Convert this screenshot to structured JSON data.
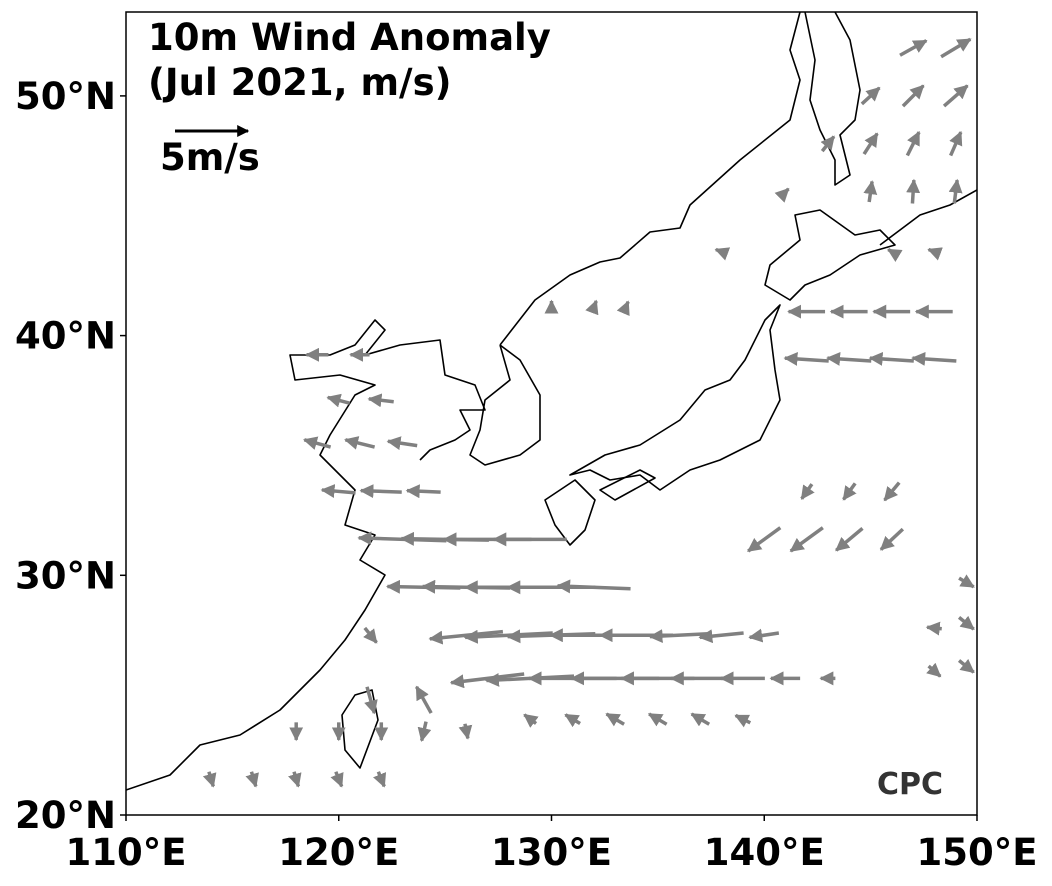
{
  "chart_data": {
    "type": "quiver",
    "title": "10m Wind Anomaly",
    "subtitle": "(Jul 2021, m/s)",
    "key_value": 5,
    "key_label": "5m/s",
    "logo": "CPC",
    "color": "#808080",
    "xlim": [
      110,
      150
    ],
    "ylim": [
      20,
      53.5
    ],
    "xticks": [
      {
        "value": 110,
        "label": "110°E"
      },
      {
        "value": 120,
        "label": "120°E"
      },
      {
        "value": 130,
        "label": "130°E"
      },
      {
        "value": 140,
        "label": "140°E"
      },
      {
        "value": 150,
        "label": "150°E"
      }
    ],
    "yticks": [
      {
        "value": 20,
        "label": "20°N"
      },
      {
        "value": 30,
        "label": "30°N"
      },
      {
        "value": 40,
        "label": "40°N"
      },
      {
        "value": 50,
        "label": "50°N"
      }
    ],
    "x": [
      142,
      144,
      146,
      148,
      142,
      144,
      146,
      148,
      123,
      125,
      127,
      129,
      124,
      126,
      128,
      130,
      132,
      126,
      128,
      130,
      132,
      134,
      136,
      138,
      140,
      127,
      129,
      131,
      133,
      135,
      137,
      139,
      141,
      143,
      129,
      131,
      133,
      135,
      137,
      139,
      140,
      142,
      144,
      146,
      142,
      144,
      146,
      149.5,
      149.5,
      149.5,
      148,
      148,
      147,
      149,
      145,
      147,
      149,
      143,
      145,
      147,
      149,
      141,
      145,
      147,
      149,
      138,
      146,
      148,
      130,
      132,
      133.5,
      119,
      121,
      120,
      122,
      119,
      121,
      123,
      120,
      122,
      124,
      121.5,
      124,
      121.5,
      118,
      120,
      122,
      124,
      126,
      114,
      116,
      118,
      120,
      122
    ],
    "y": [
      41,
      41,
      41,
      41,
      39,
      39,
      39,
      39,
      31.5,
      31.5,
      31.5,
      31.5,
      29.5,
      29.5,
      29.5,
      29.5,
      29.5,
      27.5,
      27.5,
      27.5,
      27.5,
      27.5,
      27.5,
      27.5,
      27.5,
      25.7,
      25.7,
      25.7,
      25.7,
      25.7,
      25.7,
      25.7,
      25.7,
      25.7,
      24,
      24,
      24,
      24,
      24,
      24,
      31.5,
      31.5,
      31.5,
      31.5,
      33.5,
      33.5,
      33.5,
      29.7,
      28,
      26.2,
      27.8,
      26,
      52,
      52,
      50,
      50,
      50,
      48,
      48,
      48,
      48,
      46,
      46,
      46,
      46,
      43.5,
      43.5,
      43.5,
      41.2,
      41.2,
      41.2,
      39.2,
      39.2,
      37.3,
      37.3,
      35.5,
      35.5,
      35.5,
      33.5,
      33.5,
      33.5,
      27.5,
      24.8,
      24.8,
      23.5,
      23.5,
      23.5,
      23.5,
      23.5,
      21.5,
      21.5,
      21.5,
      21.5,
      21.5
    ],
    "u": [
      -2.5,
      -2.5,
      -2.5,
      -2.5,
      -3,
      -3,
      -3,
      -3,
      -6,
      -6,
      -6,
      -5,
      -5,
      -6,
      -6,
      -6,
      -5,
      -5,
      -6,
      -6,
      -6,
      -5,
      -4,
      -3,
      -2,
      -5,
      -6,
      -6,
      -6,
      -5,
      -4,
      -3,
      -2,
      -1,
      -0.8,
      -1,
      -1.2,
      -1.2,
      -1.2,
      -1,
      -2.2,
      -2.2,
      -1.8,
      -1.5,
      -0.7,
      -0.8,
      -1,
      1,
      1,
      1,
      -1,
      0.8,
      1.8,
      2,
      1.2,
      1.4,
      1.6,
      0.8,
      0.9,
      0.8,
      0.7,
      0.4,
      0.2,
      0.1,
      0.2,
      -0.8,
      -0.5,
      -0.8,
      0,
      0.3,
      0.3,
      -1.5,
      -1.3,
      -1.5,
      -1.7,
      -1.8,
      -2,
      -2,
      -2.3,
      -2.8,
      -2.3,
      0.8,
      -1,
      0.5,
      0,
      0,
      0,
      -0.3,
      0.2,
      0.3,
      0.3,
      0.3,
      0.4,
      0.4
    ],
    "v": [
      0,
      0,
      0,
      0,
      0.2,
      0.2,
      0.2,
      0.2,
      0.2,
      0.1,
      0,
      0,
      0.1,
      0.1,
      0,
      0,
      0.2,
      -0.5,
      -0.3,
      -0.2,
      0,
      0,
      -0.2,
      -0.3,
      -0.3,
      -0.6,
      -0.3,
      0,
      0,
      0,
      0,
      0,
      0,
      0,
      0.6,
      0.6,
      0.7,
      0.7,
      0.7,
      0.5,
      -1.6,
      -1.6,
      -1.5,
      -1.4,
      -1,
      -1.1,
      -1.2,
      -0.6,
      -0.8,
      -0.8,
      0.1,
      -0.7,
      1,
      1.2,
      1.1,
      1.4,
      1.4,
      1,
      1.4,
      1.6,
      1.6,
      0.4,
      1.4,
      1.6,
      1.6,
      0.3,
      0.3,
      0.3,
      0.8,
      0.8,
      0.7,
      0,
      0,
      0.4,
      0.2,
      0.5,
      0.5,
      0.3,
      0.2,
      0.1,
      0.1,
      -1,
      1.8,
      -1.8,
      -1.2,
      -1.2,
      -1.2,
      -1.3,
      -1,
      -1,
      -1,
      -1,
      -1,
      -1
    ]
  }
}
